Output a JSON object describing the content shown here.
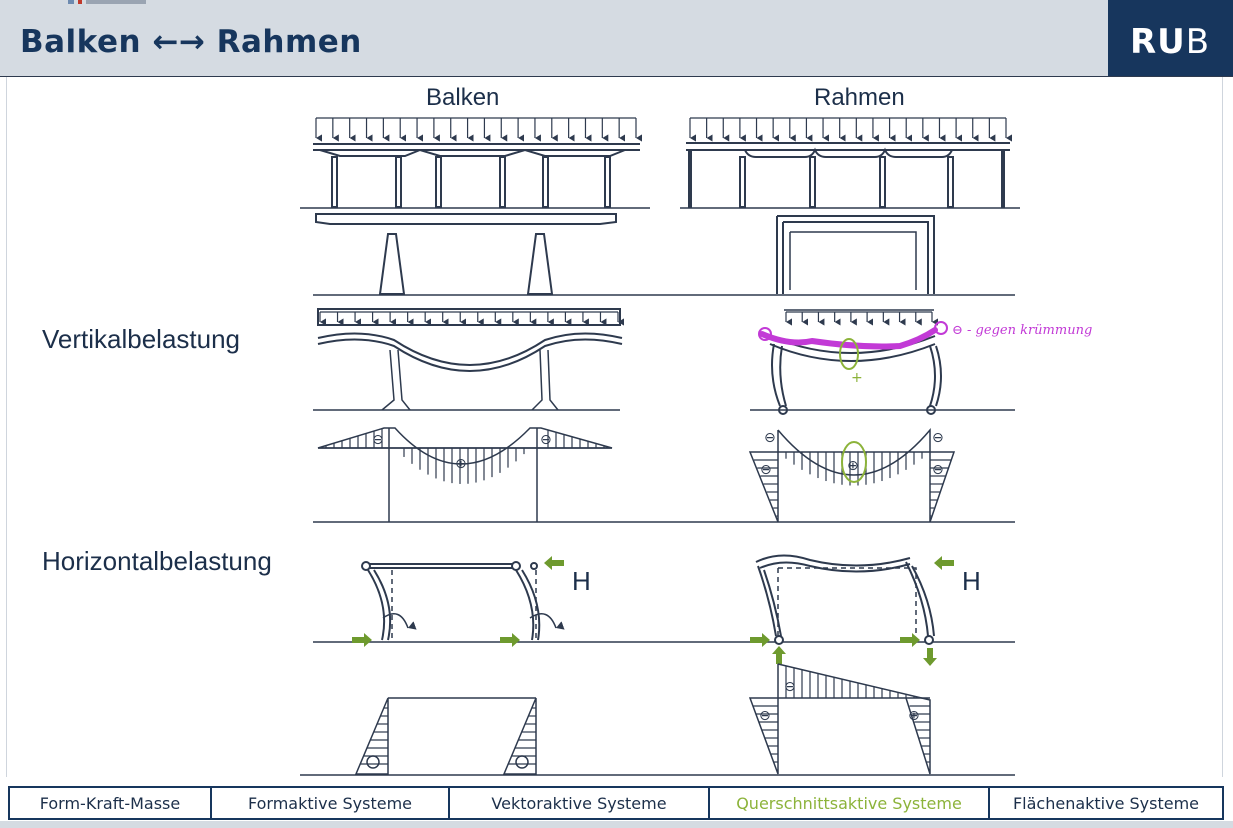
{
  "header": {
    "title": "Balken ←→ Rahmen",
    "logo_bold": "RU",
    "logo_regular": "B"
  },
  "columns": {
    "left": "Balken",
    "right": "Rahmen"
  },
  "rows": {
    "vertical": "Vertikalbelastung",
    "horizontal": "Horizontalbelastung"
  },
  "load_labels": {
    "left": "H",
    "right": "H"
  },
  "annotation": {
    "text": "⊖ - gegen krümmung",
    "plus": "+"
  },
  "signs": {
    "minus": "⊖",
    "plus": "⊕"
  },
  "footer": {
    "items": [
      {
        "label": "Form-Kraft-Masse",
        "active": false
      },
      {
        "label": "Formaktive Systeme",
        "active": false
      },
      {
        "label": "Vektoraktive Systeme",
        "active": false
      },
      {
        "label": "Querschnittsaktive Systeme",
        "active": true
      },
      {
        "label": "Flächenaktive Systeme",
        "active": false
      }
    ]
  },
  "colors": {
    "navy": "#17365d",
    "line": "#2e3a4e",
    "accent_green": "#8cb33a",
    "arrow_green": "#6e9a2e",
    "annotation_magenta": "#c23ad6",
    "header_bg": "#d5dbe2"
  }
}
